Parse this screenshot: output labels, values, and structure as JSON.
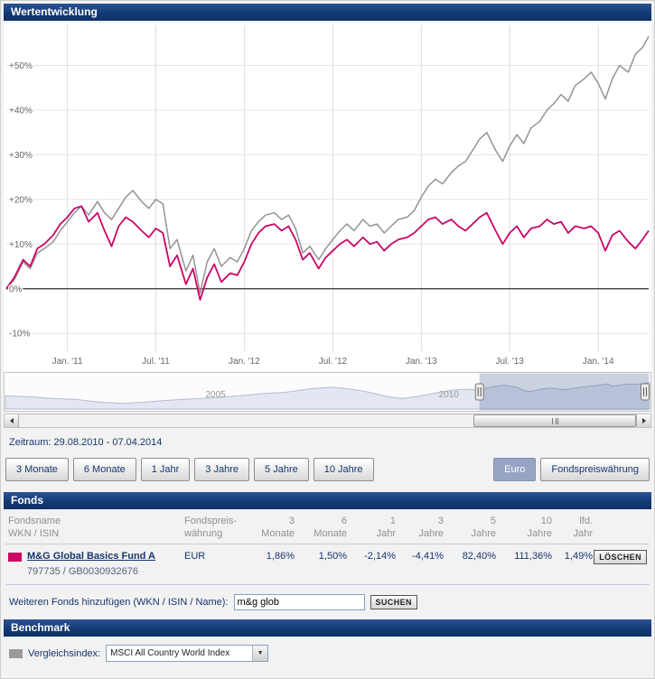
{
  "sections": {
    "performance": "Wertentwicklung",
    "fonds": "Fonds",
    "benchmark": "Benchmark"
  },
  "ui_colors": {
    "section_bar": "#143a73",
    "active_button_bg": "#98a4c6",
    "fund_color": "#cc0566",
    "benchmark_color": "#9a9a9a"
  },
  "icons": {
    "dropdown_arrow": "▼"
  },
  "period": {
    "label": "Zeitraum: 29.08.2010 - 07.04.2014"
  },
  "range_buttons": [
    "3 Monate",
    "6 Monate",
    "1 Jahr",
    "3 Jahre",
    "5 Jahre",
    "10 Jahre"
  ],
  "currency_buttons": [
    {
      "label": "Euro",
      "active": true
    },
    {
      "label": "Fondspreiswährung",
      "active": false
    }
  ],
  "chart_data": {
    "type": "line",
    "title": "Wertentwicklung",
    "grid": true,
    "x_range": [
      2010.655,
      2014.285
    ],
    "y_range": [
      -14,
      59
    ],
    "y_ticks": [
      {
        "v": 50,
        "label": "+50%"
      },
      {
        "v": 40,
        "label": "+40%"
      },
      {
        "v": 30,
        "label": "+30%"
      },
      {
        "v": 20,
        "label": "+20%"
      },
      {
        "v": 10,
        "label": "+10%"
      },
      {
        "v": 0,
        "label": "0%"
      },
      {
        "v": -10,
        "label": "-10%"
      }
    ],
    "x_ticks": [
      {
        "v": 2011.0,
        "label": "Jan. '11"
      },
      {
        "v": 2011.5,
        "label": "Jul. '11"
      },
      {
        "v": 2012.0,
        "label": "Jan. '12"
      },
      {
        "v": 2012.5,
        "label": "Jul. '12"
      },
      {
        "v": 2013.0,
        "label": "Jan. '13"
      },
      {
        "v": 2013.5,
        "label": "Jul. '13"
      },
      {
        "v": 2014.0,
        "label": "Jan. '14"
      }
    ],
    "series": [
      {
        "name": "MSCI All Country World Index",
        "color": "#949494",
        "width": 1.5,
        "points": [
          [
            2010.655,
            0
          ],
          [
            2010.7,
            2
          ],
          [
            2010.75,
            6
          ],
          [
            2010.79,
            4.5
          ],
          [
            2010.83,
            8
          ],
          [
            2010.87,
            9
          ],
          [
            2010.92,
            10.5
          ],
          [
            2010.96,
            13
          ],
          [
            2011,
            15
          ],
          [
            2011.04,
            17
          ],
          [
            2011.08,
            18.5
          ],
          [
            2011.12,
            16.5
          ],
          [
            2011.17,
            19.5
          ],
          [
            2011.21,
            17
          ],
          [
            2011.25,
            15.5
          ],
          [
            2011.29,
            18
          ],
          [
            2011.33,
            20.5
          ],
          [
            2011.37,
            22
          ],
          [
            2011.42,
            19.5
          ],
          [
            2011.46,
            18
          ],
          [
            2011.5,
            20
          ],
          [
            2011.54,
            19
          ],
          [
            2011.58,
            9
          ],
          [
            2011.62,
            11
          ],
          [
            2011.67,
            4
          ],
          [
            2011.71,
            7.5
          ],
          [
            2011.75,
            -1
          ],
          [
            2011.79,
            6
          ],
          [
            2011.83,
            9
          ],
          [
            2011.87,
            5
          ],
          [
            2011.92,
            7
          ],
          [
            2011.96,
            6
          ],
          [
            2012,
            9
          ],
          [
            2012.04,
            13
          ],
          [
            2012.08,
            15
          ],
          [
            2012.12,
            16.5
          ],
          [
            2012.17,
            17
          ],
          [
            2012.21,
            15.5
          ],
          [
            2012.25,
            16.5
          ],
          [
            2012.29,
            13.5
          ],
          [
            2012.33,
            8
          ],
          [
            2012.37,
            9.5
          ],
          [
            2012.42,
            6.5
          ],
          [
            2012.46,
            9
          ],
          [
            2012.5,
            11
          ],
          [
            2012.54,
            13
          ],
          [
            2012.58,
            14.5
          ],
          [
            2012.62,
            13
          ],
          [
            2012.67,
            15.5
          ],
          [
            2012.71,
            14
          ],
          [
            2012.75,
            14.5
          ],
          [
            2012.79,
            12.5
          ],
          [
            2012.83,
            14
          ],
          [
            2012.87,
            15.5
          ],
          [
            2012.92,
            16
          ],
          [
            2012.96,
            17.5
          ],
          [
            2013,
            20.5
          ],
          [
            2013.04,
            23
          ],
          [
            2013.08,
            24.5
          ],
          [
            2013.12,
            23.5
          ],
          [
            2013.17,
            26
          ],
          [
            2013.21,
            27.5
          ],
          [
            2013.25,
            28.5
          ],
          [
            2013.29,
            31
          ],
          [
            2013.33,
            33.5
          ],
          [
            2013.37,
            35
          ],
          [
            2013.42,
            31
          ],
          [
            2013.46,
            28.5
          ],
          [
            2013.5,
            32
          ],
          [
            2013.54,
            34.5
          ],
          [
            2013.58,
            32.5
          ],
          [
            2013.62,
            36
          ],
          [
            2013.67,
            37.5
          ],
          [
            2013.71,
            40
          ],
          [
            2013.75,
            41.5
          ],
          [
            2013.79,
            43.5
          ],
          [
            2013.83,
            42
          ],
          [
            2013.87,
            45.5
          ],
          [
            2013.92,
            47
          ],
          [
            2013.96,
            48.5
          ],
          [
            2014,
            46
          ],
          [
            2014.04,
            42.5
          ],
          [
            2014.08,
            47
          ],
          [
            2014.12,
            50
          ],
          [
            2014.17,
            48.5
          ],
          [
            2014.21,
            52.5
          ],
          [
            2014.25,
            54
          ],
          [
            2014.285,
            56.5
          ]
        ]
      },
      {
        "name": "M&G Global Basics Fund A",
        "color": "#cc0566",
        "width": 1.8,
        "points": [
          [
            2010.655,
            0
          ],
          [
            2010.7,
            2.5
          ],
          [
            2010.75,
            6.5
          ],
          [
            2010.79,
            5
          ],
          [
            2010.83,
            9
          ],
          [
            2010.87,
            10
          ],
          [
            2010.92,
            12
          ],
          [
            2010.96,
            14.5
          ],
          [
            2011,
            16
          ],
          [
            2011.04,
            18
          ],
          [
            2011.08,
            18.5
          ],
          [
            2011.12,
            15
          ],
          [
            2011.17,
            17
          ],
          [
            2011.21,
            13
          ],
          [
            2011.25,
            9.5
          ],
          [
            2011.29,
            14
          ],
          [
            2011.33,
            16
          ],
          [
            2011.37,
            15
          ],
          [
            2011.42,
            13
          ],
          [
            2011.46,
            11.5
          ],
          [
            2011.5,
            13.5
          ],
          [
            2011.54,
            12.5
          ],
          [
            2011.58,
            5
          ],
          [
            2011.62,
            7.5
          ],
          [
            2011.67,
            1
          ],
          [
            2011.71,
            4.5
          ],
          [
            2011.75,
            -2.5
          ],
          [
            2011.79,
            2.5
          ],
          [
            2011.83,
            5.5
          ],
          [
            2011.87,
            1.5
          ],
          [
            2011.92,
            3.5
          ],
          [
            2011.96,
            3
          ],
          [
            2012,
            6
          ],
          [
            2012.04,
            10
          ],
          [
            2012.08,
            12.5
          ],
          [
            2012.12,
            14
          ],
          [
            2012.17,
            14.5
          ],
          [
            2012.21,
            13
          ],
          [
            2012.25,
            14
          ],
          [
            2012.29,
            11
          ],
          [
            2012.33,
            6.5
          ],
          [
            2012.37,
            8
          ],
          [
            2012.42,
            4.5
          ],
          [
            2012.46,
            7
          ],
          [
            2012.5,
            8.5
          ],
          [
            2012.54,
            10
          ],
          [
            2012.58,
            11
          ],
          [
            2012.62,
            9.5
          ],
          [
            2012.67,
            11.5
          ],
          [
            2012.71,
            10
          ],
          [
            2012.75,
            10.5
          ],
          [
            2012.79,
            8.5
          ],
          [
            2012.83,
            10
          ],
          [
            2012.87,
            11
          ],
          [
            2012.92,
            11.5
          ],
          [
            2012.96,
            12.5
          ],
          [
            2013,
            14
          ],
          [
            2013.04,
            15.5
          ],
          [
            2013.08,
            16
          ],
          [
            2013.12,
            14.5
          ],
          [
            2013.17,
            15.5
          ],
          [
            2013.21,
            14
          ],
          [
            2013.25,
            13
          ],
          [
            2013.29,
            14.5
          ],
          [
            2013.33,
            16
          ],
          [
            2013.37,
            17
          ],
          [
            2013.42,
            13
          ],
          [
            2013.46,
            10
          ],
          [
            2013.5,
            12.5
          ],
          [
            2013.54,
            14
          ],
          [
            2013.58,
            11.5
          ],
          [
            2013.62,
            13.5
          ],
          [
            2013.67,
            14
          ],
          [
            2013.71,
            15.5
          ],
          [
            2013.75,
            14.5
          ],
          [
            2013.79,
            15
          ],
          [
            2013.83,
            12.5
          ],
          [
            2013.87,
            14
          ],
          [
            2013.92,
            13.5
          ],
          [
            2013.96,
            14
          ],
          [
            2014,
            12.5
          ],
          [
            2014.04,
            8.5
          ],
          [
            2014.08,
            12
          ],
          [
            2014.12,
            13
          ],
          [
            2014.17,
            10.5
          ],
          [
            2014.21,
            9
          ],
          [
            2014.25,
            11
          ],
          [
            2014.285,
            13
          ]
        ]
      }
    ],
    "navigator": {
      "x_range": [
        2000.5,
        2014.3
      ],
      "selection": [
        2010.655,
        2014.285
      ],
      "labels": [
        {
          "v": 2005,
          "label": "2005"
        },
        {
          "v": 2010,
          "label": "2010"
        }
      ],
      "points": [
        [
          2000.5,
          30
        ],
        [
          2001,
          28
        ],
        [
          2001.5,
          24
        ],
        [
          2002,
          22
        ],
        [
          2002.5,
          16
        ],
        [
          2003,
          13
        ],
        [
          2003.5,
          16
        ],
        [
          2004,
          20
        ],
        [
          2004.5,
          23
        ],
        [
          2005,
          26
        ],
        [
          2005.5,
          30
        ],
        [
          2006,
          35
        ],
        [
          2006.5,
          38
        ],
        [
          2007,
          46
        ],
        [
          2007.5,
          50
        ],
        [
          2008,
          44
        ],
        [
          2008.3,
          38
        ],
        [
          2008.7,
          28
        ],
        [
          2009,
          24
        ],
        [
          2009.3,
          28
        ],
        [
          2009.7,
          36
        ],
        [
          2010,
          42
        ],
        [
          2010.3,
          45
        ],
        [
          2010.655,
          44
        ],
        [
          2011,
          52
        ],
        [
          2011.2,
          54
        ],
        [
          2011.45,
          50
        ],
        [
          2011.6,
          42
        ],
        [
          2011.75,
          40
        ],
        [
          2012,
          46
        ],
        [
          2012.2,
          48
        ],
        [
          2012.45,
          44
        ],
        [
          2012.7,
          48
        ],
        [
          2013,
          52
        ],
        [
          2013.2,
          54
        ],
        [
          2013.4,
          57
        ],
        [
          2013.5,
          52
        ],
        [
          2013.7,
          55
        ],
        [
          2013.85,
          57
        ],
        [
          2014,
          56
        ],
        [
          2014.15,
          58
        ],
        [
          2014.3,
          60
        ]
      ]
    }
  },
  "fonds": {
    "section_title": "Fonds",
    "columns": [
      [
        "Fondsname",
        "WKN / ISIN"
      ],
      [
        "Fondspreis-",
        "währung"
      ],
      [
        "3",
        "Monate"
      ],
      [
        "6",
        "Monate"
      ],
      [
        "1",
        "Jahr"
      ],
      [
        "3",
        "Jahre"
      ],
      [
        "5",
        "Jahre"
      ],
      [
        "10",
        "Jahre"
      ],
      [
        "lfd.",
        "Jahr"
      ]
    ],
    "rows": [
      {
        "color": "#cc0566",
        "name": "M&G Global Basics Fund A",
        "wkn_isin": "797735 / GB0030932676",
        "currency": "EUR",
        "values": [
          "1,86%",
          "1,50%",
          "-2,14%",
          "-4,41%",
          "82,40%",
          "111,36%",
          "1,49%"
        ],
        "delete_label": "LÖSCHEN"
      }
    ],
    "add": {
      "label": "Weiteren Fonds hinzufügen (WKN / ISIN / Name):",
      "input_value": "m&g glob",
      "button": "SUCHEN"
    }
  },
  "benchmark": {
    "section_title": "Benchmark",
    "label": "Vergleichsindex:",
    "selected": "MSCI All Country World Index",
    "swatch_color": "#9a9a9a"
  }
}
